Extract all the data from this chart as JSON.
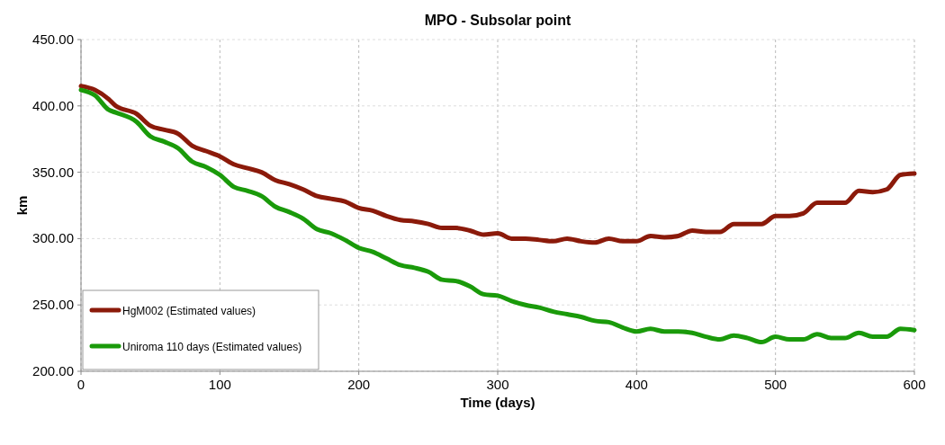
{
  "chart_data": {
    "type": "line",
    "title": "MPO - Subsolar point",
    "xlabel": "Time (days)",
    "ylabel": "km",
    "x": [
      0,
      10,
      20,
      25,
      40,
      50,
      60,
      70,
      80,
      90,
      100,
      110,
      120,
      130,
      140,
      150,
      160,
      170,
      180,
      190,
      200,
      210,
      220,
      230,
      240,
      250,
      260,
      270,
      280,
      290,
      300,
      310,
      320,
      330,
      340,
      350,
      360,
      370,
      380,
      390,
      400,
      410,
      420,
      430,
      440,
      450,
      460,
      470,
      480,
      490,
      500,
      510,
      520,
      530,
      540,
      550,
      560,
      570,
      580,
      590,
      600
    ],
    "series": [
      {
        "name": "HgM002 (Estimated values)",
        "color": "#8b1a0a",
        "values": [
          415,
          412,
          405,
          400,
          394,
          385,
          382,
          379,
          370,
          366,
          362,
          356,
          353,
          350,
          344,
          341,
          337,
          332,
          330,
          328,
          323,
          321,
          317,
          314,
          313,
          311,
          308,
          308,
          306,
          303,
          304,
          300,
          300,
          299,
          298,
          300,
          298,
          297,
          300,
          298,
          298,
          302,
          301,
          302,
          306,
          305,
          305,
          311,
          311,
          311,
          317,
          317,
          319,
          327,
          327,
          327,
          336,
          335,
          337,
          348,
          349
        ]
      },
      {
        "name": "Uniroma 110 days (Estimated values)",
        "color": "#1a9a0a",
        "values": [
          412,
          408,
          397,
          395,
          388,
          377,
          373,
          368,
          358,
          354,
          348,
          339,
          336,
          332,
          324,
          320,
          315,
          307,
          304,
          299,
          293,
          290,
          285,
          280,
          278,
          275,
          269,
          268,
          264,
          258,
          257,
          253,
          250,
          248,
          245,
          243,
          241,
          238,
          237,
          233,
          230,
          232,
          230,
          230,
          229,
          226,
          224,
          227,
          225,
          222,
          226,
          224,
          224,
          228,
          225,
          225,
          229,
          226,
          226,
          232,
          231
        ]
      }
    ],
    "xlim": [
      0,
      600
    ],
    "xticks": [
      0,
      100,
      200,
      300,
      400,
      500,
      600
    ],
    "ylim": [
      200,
      450
    ],
    "yticks": [
      {
        "value": 200,
        "label": "200.00"
      },
      {
        "value": 250,
        "label": "250.00"
      },
      {
        "value": 300,
        "label": "300.00"
      },
      {
        "value": 350,
        "label": "350.00"
      },
      {
        "value": 400,
        "label": "400.00"
      },
      {
        "value": 450,
        "label": "450.00"
      }
    ],
    "grid": true,
    "legend": "bottom left",
    "line_style": "solid"
  }
}
